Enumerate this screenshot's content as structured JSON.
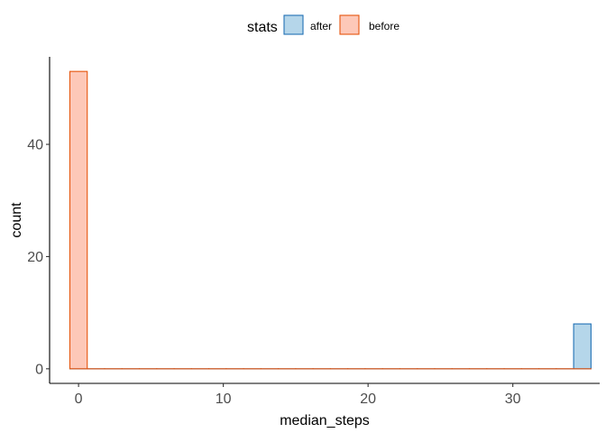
{
  "chart_data": {
    "type": "histogram",
    "xlabel": "median_steps",
    "ylabel": "count",
    "xlim": [
      -2,
      36
    ],
    "ylim": [
      -2.6,
      55.6
    ],
    "x_ticks": [
      0,
      10,
      20,
      30
    ],
    "y_ticks": [
      0,
      20,
      40
    ],
    "bin_width": 1.2,
    "bin_start": -0.6,
    "bin_count": 30,
    "legend": {
      "title": "stats",
      "position": "top",
      "entries": [
        "after",
        "before"
      ]
    },
    "series": [
      {
        "name": "after",
        "fill": "#6baed6",
        "fill_opacity": 0.5,
        "stroke": "#2171b5",
        "bins": [
          {
            "bin": 29,
            "count": 8
          }
        ]
      },
      {
        "name": "before",
        "fill": "#fc9272",
        "fill_opacity": 0.5,
        "stroke": "#e6550d",
        "bins": [
          {
            "bin": 0,
            "count": 53
          }
        ]
      }
    ]
  }
}
